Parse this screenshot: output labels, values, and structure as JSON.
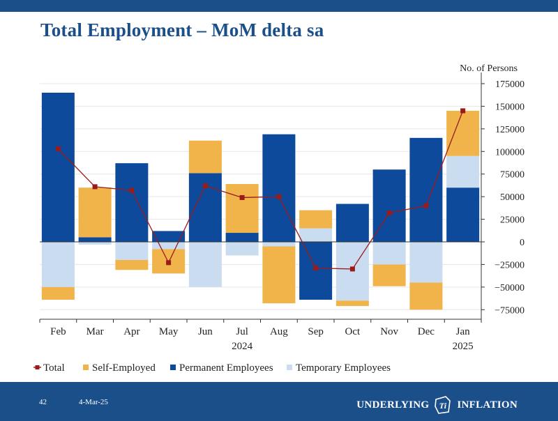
{
  "slide": {
    "title": "Total Employment – MoM delta sa",
    "number": "42",
    "date": "4-Mar-25",
    "brand_left": "UNDERLYING",
    "brand_right": "INFLATION",
    "brand_logo_glyph": "Ti"
  },
  "colors": {
    "brand_blue": "#1b4f8a",
    "permanent": "#0e4a9c",
    "self_employed": "#f0b44a",
    "temporary": "#c9dcf0",
    "total": "#9b1b1b"
  },
  "chart_data": {
    "type": "bar",
    "stacked": true,
    "categories": [
      "Feb",
      "Mar",
      "Apr",
      "May",
      "Jun",
      "Jul",
      "Aug",
      "Sep",
      "Oct",
      "Nov",
      "Dec",
      "Jan"
    ],
    "year_labels": [
      {
        "label": "2024",
        "category": "Jul"
      },
      {
        "label": "2025",
        "category": "Jan"
      }
    ],
    "series": [
      {
        "name": "Permanent Employees",
        "type": "bar",
        "values": [
          165000,
          5000,
          87000,
          12000,
          76000,
          10000,
          119000,
          -64000,
          42000,
          80000,
          115000,
          60000
        ]
      },
      {
        "name": "Temporary Employees",
        "type": "bar",
        "values": [
          -50000,
          -3000,
          -20000,
          -8000,
          -50000,
          -15000,
          -5000,
          15000,
          -65000,
          -25000,
          -45000,
          35000
        ]
      },
      {
        "name": "Self-Employed",
        "type": "bar",
        "values": [
          -14000,
          55000,
          -11000,
          -27000,
          36000,
          54000,
          -63000,
          20000,
          -6000,
          -24000,
          -30000,
          50000
        ]
      },
      {
        "name": "Total",
        "type": "line",
        "values": [
          103000,
          61000,
          57000,
          -23000,
          62000,
          49000,
          50000,
          -29000,
          -30000,
          32000,
          40000,
          145000
        ]
      }
    ],
    "legend": [
      "Total",
      "Self-Employed",
      "Permanent Employees",
      "Temporary Employees"
    ],
    "ylabel": "No. of Persons",
    "ylim": [
      -85000,
      175000
    ],
    "yticks": [
      175000,
      150000,
      125000,
      100000,
      75000,
      50000,
      25000,
      0,
      -25000,
      -50000,
      -75000
    ],
    "ytick_labels": [
      "175000",
      "150000",
      "125000",
      "100000",
      "75000",
      "50000",
      "25000",
      "0",
      "−25000",
      "−50000",
      "−75000"
    ],
    "legend_position": "bottom-left"
  }
}
